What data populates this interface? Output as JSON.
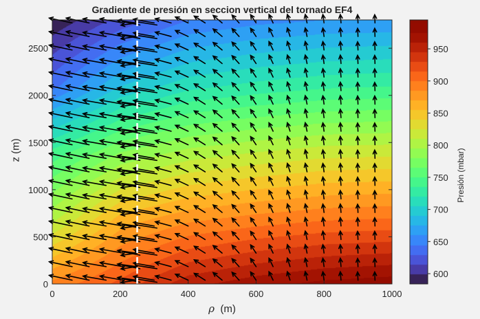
{
  "chart_data": {
    "type": "heatmap",
    "subtype": "filled-contour-with-quiver",
    "title": "Gradiente de presión en seccion vertical del tornado EF4",
    "xlabel_symbol": "ρ",
    "xlabel_unit": "(m)",
    "ylabel": "z (m)",
    "xlim": [
      0,
      1000
    ],
    "ylim": [
      0,
      2800
    ],
    "xticks": [
      0,
      200,
      400,
      600,
      800,
      1000
    ],
    "yticks": [
      0,
      500,
      1000,
      1500,
      2000,
      2500
    ],
    "colorbar": {
      "label": "Presión (mbar)",
      "range": [
        584,
        995
      ],
      "ticks": [
        600,
        650,
        700,
        750,
        800,
        850,
        900,
        950
      ],
      "colormap": "turbo",
      "level_step": 15
    },
    "pressure_grid": {
      "r": [
        0,
        200,
        400,
        600,
        800,
        1000
      ],
      "z": [
        0,
        700,
        1400,
        2100,
        2800
      ],
      "p": [
        [
          890,
          920,
          955,
          970,
          980,
          985
        ],
        [
          805,
          860,
          880,
          890,
          897,
          900
        ],
        [
          740,
          780,
          800,
          810,
          818,
          820
        ],
        [
          640,
          690,
          715,
          725,
          732,
          735
        ],
        [
          588,
          620,
          645,
          655,
          660,
          662
        ]
      ]
    },
    "vertical_line": {
      "x": 250,
      "style": "dashed",
      "color": "#ffffff"
    },
    "quiver": {
      "r": [
        0,
        50,
        100,
        150,
        200,
        250,
        300,
        350,
        400,
        450,
        500,
        550,
        600,
        650,
        700,
        750,
        800,
        850,
        900,
        950
      ],
      "rows": 20,
      "angle_deg_from_left": [
        12,
        12,
        10,
        10,
        8,
        -8,
        10,
        15,
        25,
        32,
        40,
        48,
        56,
        64,
        72,
        78,
        82,
        85,
        87,
        88
      ],
      "length_rel": [
        1.0,
        1.0,
        1.0,
        1.0,
        0.8,
        0.7,
        0.9,
        0.7,
        0.6,
        0.55,
        0.5,
        0.45,
        0.42,
        0.4,
        0.38,
        0.37,
        0.36,
        0.36,
        0.35,
        0.35
      ],
      "color": "#000000"
    }
  }
}
